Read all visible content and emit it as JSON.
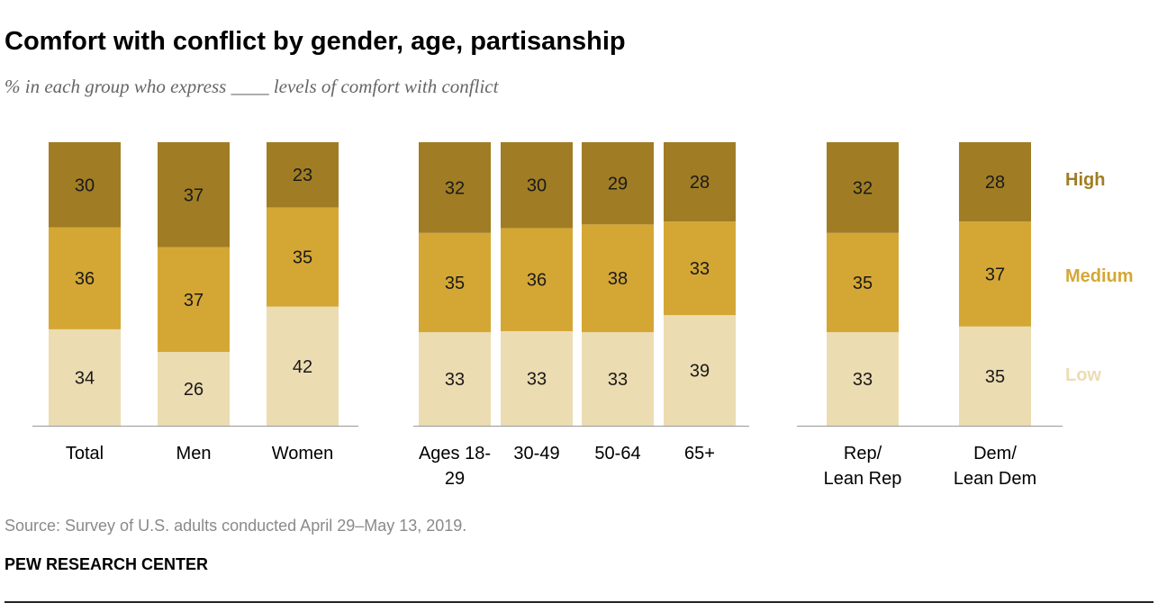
{
  "title": "Comfort with conflict by gender, age, partisanship",
  "subtitle": "% in each group who express ____ levels of comfort with conflict",
  "source": "Source: Survey of U.S. adults conducted April 29–May 13, 2019.",
  "organization": "PEW RESEARCH CENTER",
  "chart_data": {
    "type": "bar",
    "stacked": true,
    "orientation": "vertical",
    "categories": [
      [
        "Total"
      ],
      [
        "Men"
      ],
      [
        "Women"
      ],
      [
        "Ages 18-",
        "29"
      ],
      [
        "30-49"
      ],
      [
        "50-64"
      ],
      [
        "65+"
      ],
      [
        "Rep/",
        "Lean Rep"
      ],
      [
        "Dem/",
        "Lean Dem"
      ]
    ],
    "groups": [
      {
        "categories": [
          0,
          1,
          2
        ]
      },
      {
        "categories": [
          3,
          4,
          5,
          6
        ]
      },
      {
        "categories": [
          7,
          8
        ]
      }
    ],
    "series": [
      {
        "name": "Low",
        "color": "#ecdcb1",
        "values": [
          34,
          26,
          42,
          33,
          33,
          33,
          39,
          33,
          35
        ]
      },
      {
        "name": "Medium",
        "color": "#d4a735",
        "values": [
          36,
          37,
          35,
          35,
          36,
          38,
          33,
          35,
          37
        ]
      },
      {
        "name": "High",
        "color": "#a07d24",
        "values": [
          30,
          37,
          23,
          32,
          30,
          29,
          28,
          32,
          28
        ]
      }
    ],
    "ylim": [
      0,
      100
    ],
    "grid": false,
    "legend": "right, aligned with segments",
    "data_labels": true
  }
}
